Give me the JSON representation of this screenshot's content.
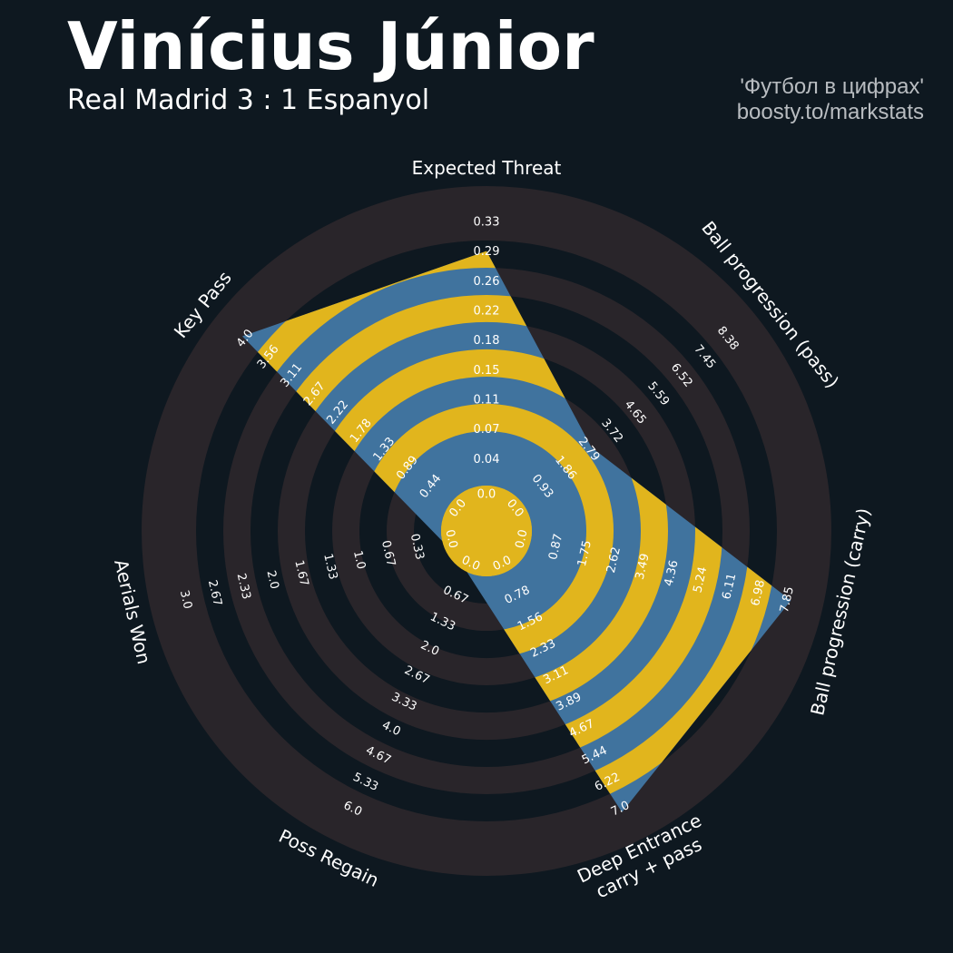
{
  "header": {
    "title": "Vinícius Júnior",
    "subtitle": "Real Madrid 3 : 1 Espanyol",
    "credit_line1": "'Футбол в цифрах'",
    "credit_line2": "boosty.to/markstats"
  },
  "colors": {
    "background": "#0e1820",
    "ring_band": "#29252a",
    "slice_blue": "#40739e",
    "slice_yellow": "#e1b51d"
  },
  "chart_data": {
    "type": "radar",
    "title": "Vinícius Júnior",
    "subtitle": "Real Madrid 3 : 1 Espanyol",
    "params": [
      {
        "label": [
          "Expected Threat"
        ],
        "value": 0.29,
        "min": 0.0,
        "max": 0.33,
        "ticks": [
          "0.0",
          "0.04",
          "0.07",
          "0.11",
          "0.15",
          "0.18",
          "0.22",
          "0.26",
          "0.29",
          "0.33"
        ]
      },
      {
        "label": [
          "Ball progression (pass)"
        ],
        "value": 2.79,
        "min": 0.0,
        "max": 8.38,
        "ticks": [
          "0.0",
          "0.93",
          "1.86",
          "2.79",
          "3.72",
          "4.65",
          "5.59",
          "6.52",
          "7.45",
          "8.38"
        ]
      },
      {
        "label": [
          "Ball progression (carry)"
        ],
        "value": 7.85,
        "min": 0.0,
        "max": 7.85,
        "ticks": [
          "0.0",
          "0.87",
          "1.75",
          "2.62",
          "3.49",
          "4.36",
          "5.24",
          "6.11",
          "6.98",
          "7.85"
        ]
      },
      {
        "label": [
          "Deep Entrance",
          "carry + pass"
        ],
        "value": 7.0,
        "min": 0.0,
        "max": 7.0,
        "ticks": [
          "0.0",
          "0.78",
          "1.56",
          "2.33",
          "3.11",
          "3.89",
          "4.67",
          "5.44",
          "6.22",
          "7.0"
        ]
      },
      {
        "label": [
          "Poss Regain"
        ],
        "value": 0.0,
        "min": 0.0,
        "max": 6.0,
        "ticks": [
          "0.0",
          "0.67",
          "1.33",
          "2.0",
          "2.67",
          "3.33",
          "4.0",
          "4.67",
          "5.33",
          "6.0"
        ]
      },
      {
        "label": [
          "Aerials Won"
        ],
        "value": 0.0,
        "min": 0.0,
        "max": 3.0,
        "ticks": [
          "0.0",
          "0.33",
          "0.67",
          "1.0",
          "1.33",
          "1.67",
          "2.0",
          "2.33",
          "2.67",
          "3.0"
        ]
      },
      {
        "label": [
          "Key Pass"
        ],
        "value": 4.0,
        "min": 0.0,
        "max": 4.0,
        "ticks": [
          "0.0",
          "0.44",
          "0.89",
          "1.33",
          "1.78",
          "2.22",
          "2.67",
          "3.11",
          "3.56",
          "4.0"
        ]
      }
    ]
  }
}
